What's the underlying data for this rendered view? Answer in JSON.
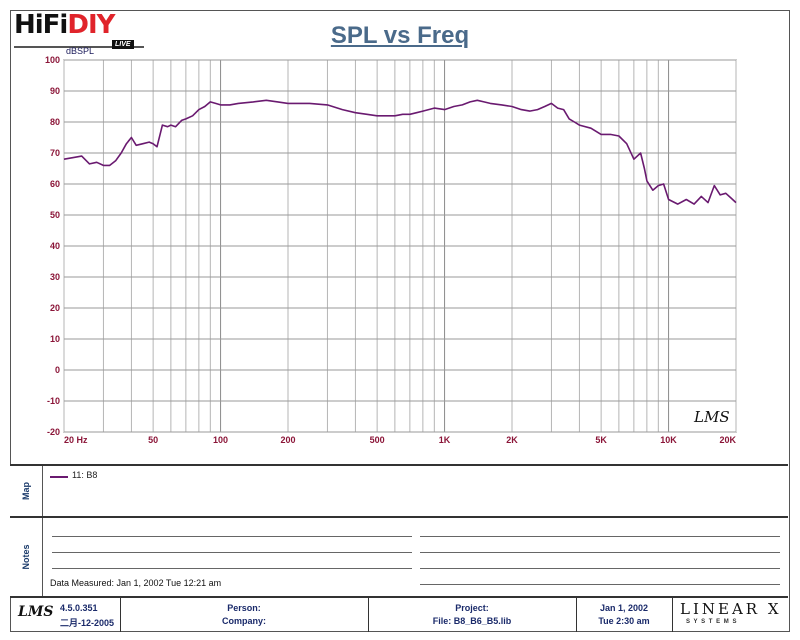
{
  "logo": {
    "hifi": "HiFi",
    "diy": "DIY",
    "live": "LIVE"
  },
  "chart_data": {
    "type": "line",
    "title": "SPL vs Freq",
    "ylabel": "dBSPL",
    "xscale": "log",
    "xlim": [
      20,
      20000
    ],
    "ylim": [
      -20,
      100
    ],
    "grid": true,
    "x_tick_labels": [
      "20  Hz",
      "50",
      "100",
      "200",
      "500",
      "1K",
      "2K",
      "5K",
      "10K",
      "20K"
    ],
    "y_tick_labels": [
      "100",
      "90",
      "80",
      "70",
      "60",
      "50",
      "40",
      "30",
      "20",
      "10",
      "0",
      "-10",
      "-20"
    ],
    "watermark": "LMS",
    "series": [
      {
        "name": "11: B8",
        "color": "#6a1a70",
        "x": [
          20,
          22,
          24,
          26,
          28,
          30,
          32,
          34,
          36,
          38,
          40,
          42,
          45,
          48,
          50,
          52,
          55,
          58,
          60,
          63,
          67,
          70,
          75,
          80,
          85,
          90,
          95,
          100,
          110,
          120,
          140,
          160,
          180,
          200,
          250,
          300,
          350,
          400,
          450,
          500,
          550,
          600,
          650,
          700,
          750,
          800,
          900,
          1000,
          1100,
          1200,
          1300,
          1400,
          1500,
          1600,
          1800,
          2000,
          2200,
          2400,
          2600,
          2800,
          3000,
          3200,
          3400,
          3600,
          3800,
          4000,
          4500,
          5000,
          5500,
          6000,
          6500,
          7000,
          7500,
          7800,
          8000,
          8500,
          9000,
          9500,
          10000,
          11000,
          12000,
          13000,
          14000,
          15000,
          16000,
          17000,
          18000,
          19000,
          20000
        ],
        "values": [
          68,
          68.5,
          69,
          66.5,
          67,
          66,
          66,
          67.5,
          70,
          73,
          75,
          72.5,
          73,
          73.5,
          73,
          72,
          79,
          78.5,
          79,
          78.5,
          80.5,
          81,
          82,
          84,
          85,
          86.5,
          86,
          85.5,
          85.5,
          86,
          86.5,
          87,
          86.5,
          86,
          86,
          85.5,
          84,
          83,
          82.5,
          82,
          82,
          82,
          82.5,
          82.5,
          83,
          83.5,
          84.5,
          84,
          85,
          85.5,
          86.5,
          87,
          86.5,
          86,
          85.5,
          85,
          84,
          83.5,
          84,
          85,
          86,
          84.5,
          84,
          81,
          80,
          79,
          78,
          76,
          76,
          75.5,
          73,
          68,
          70,
          65,
          61,
          58,
          59.5,
          60,
          55,
          53.5,
          55,
          53.5,
          56,
          54,
          59.5,
          56.5,
          57,
          55.5,
          54
        ]
      }
    ]
  },
  "map": {
    "label": "Map",
    "legend": "11: B8"
  },
  "notes": {
    "label": "Notes",
    "measured": "Data Measured: Jan  1, 2002  Tue 12:21 am"
  },
  "footer": {
    "lms": "LMS",
    "version": "4.5.0.351",
    "build_date": "二月-12-2005",
    "person": "Person:",
    "company": "Company:",
    "project": "Project:",
    "file": "File: B8_B6_B5.lib",
    "date": "Jan  1, 2002",
    "time": "Tue  2:30 am",
    "brand": "LINEAR X",
    "brand_sub": "S Y S T E M S"
  }
}
